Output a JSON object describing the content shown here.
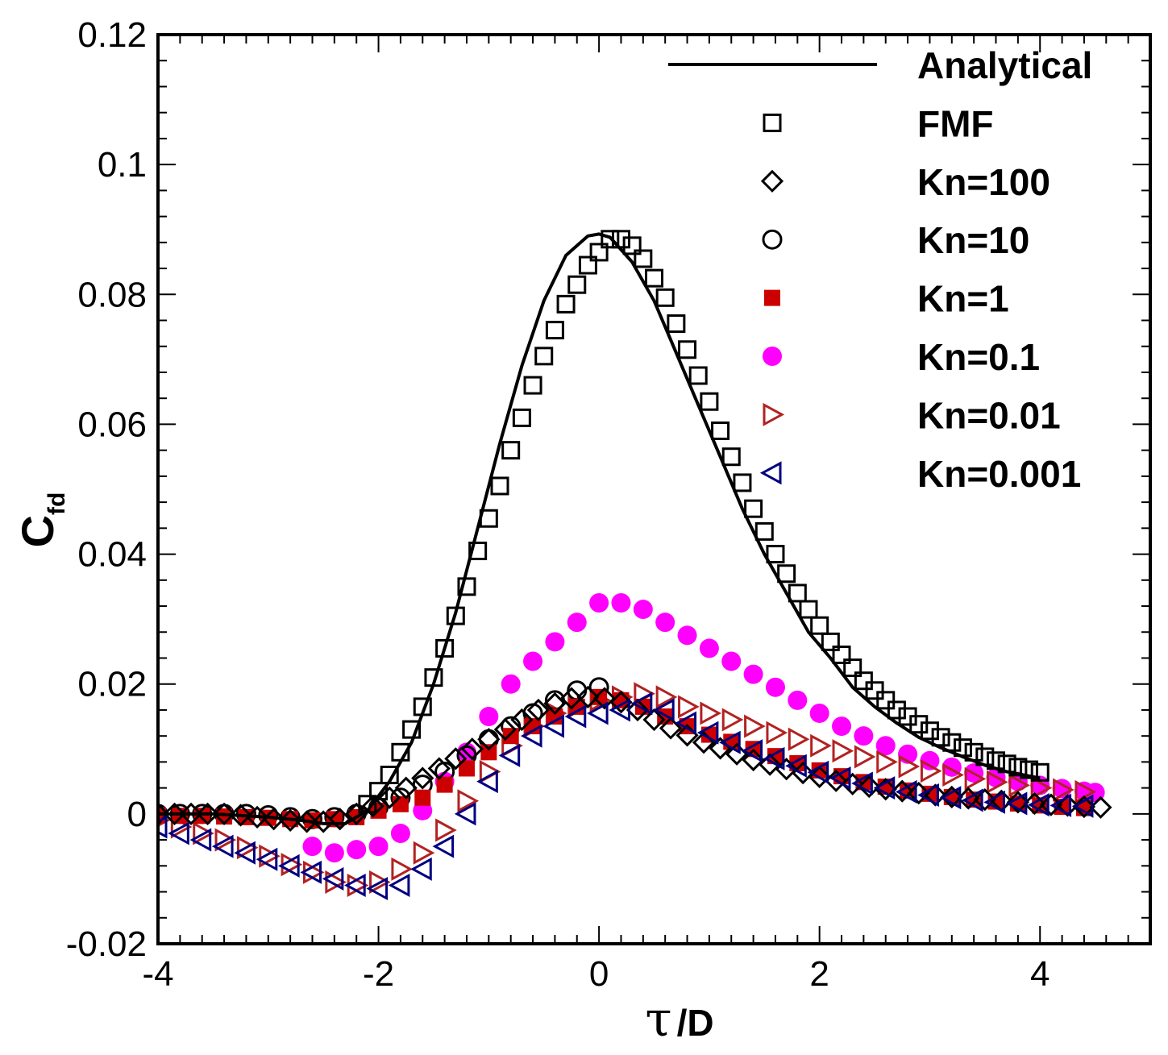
{
  "chart_data": {
    "type": "scatter",
    "title": "",
    "xlabel": {
      "main": "τ",
      "suffix": "/D"
    },
    "ylabel": {
      "main": "C",
      "subscript": "fd"
    },
    "xlim": [
      -4,
      5
    ],
    "ylim": [
      -0.02,
      0.12
    ],
    "xticks": [
      -4,
      -2,
      0,
      2,
      4
    ],
    "xtick_labels": [
      "-4",
      "-2",
      "0",
      "2",
      "4"
    ],
    "yticks": [
      -0.02,
      0,
      0.02,
      0.04,
      0.06,
      0.08,
      0.1,
      0.12
    ],
    "ytick_labels": [
      "-0.02",
      "0",
      "0.02",
      "0.04",
      "0.06",
      "0.08",
      "0.1",
      "0.12"
    ],
    "grid": false,
    "legend_position": "top-right",
    "series": [
      {
        "name": "Analytical",
        "marker": "line",
        "color": "#000000",
        "x": [
          -4.0,
          -3.5,
          -3.0,
          -2.7,
          -2.5,
          -2.3,
          -2.1,
          -1.9,
          -1.7,
          -1.5,
          -1.3,
          -1.1,
          -0.9,
          -0.7,
          -0.5,
          -0.3,
          -0.1,
          0.0,
          0.1,
          0.3,
          0.5,
          0.7,
          0.9,
          1.1,
          1.3,
          1.5,
          1.7,
          1.9,
          2.1,
          2.3,
          2.5,
          2.7,
          2.9,
          3.1,
          3.3,
          3.5,
          3.7,
          4.0
        ],
        "y": [
          0.0,
          0.0,
          -0.0005,
          -0.001,
          -0.0015,
          -0.0015,
          0.0005,
          0.005,
          0.011,
          0.02,
          0.031,
          0.044,
          0.057,
          0.069,
          0.079,
          0.086,
          0.089,
          0.0893,
          0.0888,
          0.085,
          0.079,
          0.071,
          0.063,
          0.055,
          0.047,
          0.04,
          0.034,
          0.028,
          0.024,
          0.0195,
          0.0165,
          0.014,
          0.0118,
          0.0102,
          0.0088,
          0.0075,
          0.0065,
          0.0055
        ]
      },
      {
        "name": "FMF",
        "marker": "open-square",
        "color": "#000000",
        "x": [
          -2.1,
          -2.0,
          -1.9,
          -1.8,
          -1.7,
          -1.6,
          -1.5,
          -1.4,
          -1.3,
          -1.2,
          -1.1,
          -1.0,
          -0.9,
          -0.8,
          -0.7,
          -0.6,
          -0.5,
          -0.4,
          -0.3,
          -0.2,
          -0.1,
          0.0,
          0.1,
          0.2,
          0.3,
          0.4,
          0.5,
          0.6,
          0.7,
          0.8,
          0.9,
          1.0,
          1.1,
          1.2,
          1.3,
          1.4,
          1.5,
          1.6,
          1.7,
          1.8,
          1.9,
          2.0,
          2.1,
          2.2,
          2.3,
          2.4,
          2.5,
          2.6,
          2.7,
          2.8,
          2.9,
          3.0,
          3.1,
          3.2,
          3.3,
          3.4,
          3.5,
          3.6,
          3.7,
          3.8,
          3.9,
          4.0
        ],
        "y": [
          0.0015,
          0.0035,
          0.006,
          0.0095,
          0.013,
          0.0165,
          0.021,
          0.0255,
          0.0305,
          0.035,
          0.0405,
          0.0455,
          0.0505,
          0.056,
          0.061,
          0.066,
          0.0705,
          0.0745,
          0.0785,
          0.0815,
          0.0845,
          0.0865,
          0.0885,
          0.0885,
          0.0875,
          0.0855,
          0.0825,
          0.0795,
          0.0755,
          0.0715,
          0.0675,
          0.0635,
          0.059,
          0.055,
          0.051,
          0.047,
          0.0435,
          0.04,
          0.037,
          0.034,
          0.0315,
          0.029,
          0.0265,
          0.0245,
          0.0225,
          0.0205,
          0.019,
          0.0175,
          0.016,
          0.015,
          0.0138,
          0.0128,
          0.0118,
          0.011,
          0.0102,
          0.0095,
          0.0088,
          0.0082,
          0.0077,
          0.0072,
          0.0068,
          0.0064
        ]
      },
      {
        "name": "Kn=100",
        "marker": "open-diamond",
        "color": "#000000",
        "x": [
          -4.0,
          -3.85,
          -3.7,
          -3.55,
          -3.4,
          -3.25,
          -3.1,
          -2.95,
          -2.8,
          -2.65,
          -2.5,
          -2.35,
          -2.2,
          -2.05,
          -1.9,
          -1.75,
          -1.6,
          -1.45,
          -1.3,
          -1.15,
          -1.0,
          -0.85,
          -0.7,
          -0.55,
          -0.4,
          -0.25,
          -0.1,
          0.05,
          0.2,
          0.35,
          0.5,
          0.65,
          0.8,
          0.95,
          1.1,
          1.25,
          1.4,
          1.55,
          1.7,
          1.85,
          2.0,
          2.15,
          2.3,
          2.45,
          2.6,
          2.75,
          2.9,
          3.05,
          3.2,
          3.35,
          3.5,
          3.65,
          3.8,
          3.95,
          4.1,
          4.25,
          4.4,
          4.55
        ],
        "y": [
          0.0,
          0.0,
          0.0,
          0.0,
          0.0,
          -0.0002,
          -0.0005,
          -0.0008,
          -0.001,
          -0.0012,
          -0.0012,
          -0.0008,
          0.0,
          0.0012,
          0.0025,
          0.004,
          0.0055,
          0.007,
          0.0085,
          0.01,
          0.0115,
          0.013,
          0.0145,
          0.016,
          0.017,
          0.0178,
          0.018,
          0.0178,
          0.0172,
          0.016,
          0.0145,
          0.0132,
          0.0121,
          0.011,
          0.0101,
          0.0092,
          0.0083,
          0.0076,
          0.0069,
          0.0063,
          0.0057,
          0.0051,
          0.0046,
          0.0042,
          0.0038,
          0.0035,
          0.0032,
          0.0029,
          0.0026,
          0.0024,
          0.0022,
          0.002,
          0.0018,
          0.0016,
          0.0014,
          0.0013,
          0.0011,
          0.001
        ]
      },
      {
        "name": "Kn=10",
        "marker": "open-circle",
        "color": "#000000",
        "x": [
          -4.0,
          -3.8,
          -3.6,
          -3.4,
          -3.2,
          -3.0,
          -2.8,
          -2.6,
          -2.4,
          -2.2,
          -2.0,
          -1.8,
          -1.6,
          -1.4,
          -1.2,
          -1.0,
          -0.8,
          -0.6,
          -0.4,
          -0.2,
          0.0
        ],
        "y": [
          0.0,
          0.0,
          0.0,
          0.0,
          0.0,
          -0.0002,
          -0.0005,
          -0.0008,
          -0.0005,
          0.0,
          0.001,
          0.0025,
          0.0045,
          0.0065,
          0.009,
          0.0115,
          0.0135,
          0.0155,
          0.0175,
          0.019,
          0.0195
        ]
      },
      {
        "name": "Kn=1",
        "marker": "filled-square",
        "color": "#cc0000",
        "x": [
          -4.0,
          -3.8,
          -3.6,
          -3.4,
          -3.2,
          -3.0,
          -2.8,
          -2.6,
          -2.4,
          -2.2,
          -2.0,
          -1.8,
          -1.6,
          -1.4,
          -1.2,
          -1.0,
          -0.8,
          -0.6,
          -0.4,
          -0.2,
          0.0,
          0.2,
          0.4,
          0.6,
          0.8,
          1.0,
          1.2,
          1.4,
          1.6,
          1.8,
          2.0,
          2.2,
          2.4,
          2.6,
          2.8,
          3.0,
          3.2,
          3.4,
          3.6,
          3.8,
          4.0,
          4.2,
          4.4
        ],
        "y": [
          -0.0002,
          -0.0003,
          -0.0003,
          -0.0004,
          -0.0005,
          -0.0006,
          -0.0008,
          -0.001,
          -0.0008,
          -0.0005,
          0.0005,
          0.0015,
          0.0025,
          0.0045,
          0.007,
          0.0095,
          0.012,
          0.0135,
          0.015,
          0.0165,
          0.018,
          0.0175,
          0.0165,
          0.015,
          0.0135,
          0.0122,
          0.0111,
          0.01,
          0.0089,
          0.0078,
          0.0067,
          0.0058,
          0.0049,
          0.0042,
          0.0036,
          0.0031,
          0.0026,
          0.0022,
          0.0019,
          0.0016,
          0.0013,
          0.0011,
          0.0009
        ]
      },
      {
        "name": "Kn=0.1",
        "marker": "filled-circle",
        "color": "#ff00ff",
        "x": [
          -2.6,
          -2.4,
          -2.2,
          -2.0,
          -1.8,
          -1.6,
          -1.4,
          -1.2,
          -1.0,
          -0.8,
          -0.6,
          -0.4,
          -0.2,
          0.0,
          0.2,
          0.4,
          0.6,
          0.8,
          1.0,
          1.2,
          1.4,
          1.6,
          1.8,
          2.0,
          2.2,
          2.4,
          2.6,
          2.8,
          3.0,
          3.2,
          3.4,
          3.6,
          3.8,
          4.0,
          4.2,
          4.4,
          4.5
        ],
        "y": [
          -0.005,
          -0.006,
          -0.0055,
          -0.005,
          -0.003,
          0.0005,
          0.005,
          0.0095,
          0.015,
          0.02,
          0.0235,
          0.0265,
          0.0295,
          0.0325,
          0.0325,
          0.0315,
          0.0295,
          0.0275,
          0.0255,
          0.0235,
          0.0215,
          0.0195,
          0.0175,
          0.0155,
          0.0135,
          0.012,
          0.0105,
          0.0092,
          0.0082,
          0.0072,
          0.0063,
          0.0056,
          0.005,
          0.0044,
          0.0039,
          0.0035,
          0.0033
        ]
      },
      {
        "name": "Kn=0.01",
        "marker": "open-triangle-right",
        "color": "#b22222",
        "x": [
          -4.0,
          -3.8,
          -3.6,
          -3.4,
          -3.2,
          -3.0,
          -2.8,
          -2.6,
          -2.4,
          -2.2,
          -2.0,
          -1.8,
          -1.6,
          -1.4,
          -1.2,
          -1.0,
          -0.8,
          -0.6,
          -0.4,
          -0.2,
          0.0,
          0.2,
          0.4,
          0.6,
          0.8,
          1.0,
          1.2,
          1.4,
          1.6,
          1.8,
          2.0,
          2.2,
          2.4,
          2.6,
          2.8,
          3.0,
          3.2,
          3.4,
          3.6,
          3.8,
          4.0,
          4.2,
          4.4
        ],
        "y": [
          -0.001,
          -0.002,
          -0.003,
          -0.004,
          -0.0052,
          -0.0065,
          -0.0078,
          -0.009,
          -0.0105,
          -0.011,
          -0.0105,
          -0.0085,
          -0.006,
          -0.0025,
          0.002,
          0.0065,
          0.0105,
          0.0135,
          0.0155,
          0.0165,
          0.0175,
          0.018,
          0.0185,
          0.018,
          0.0165,
          0.0155,
          0.0145,
          0.0135,
          0.0125,
          0.0115,
          0.0105,
          0.0097,
          0.0088,
          0.008,
          0.0073,
          0.0066,
          0.006,
          0.0054,
          0.0049,
          0.0044,
          0.004,
          0.0037,
          0.0034
        ]
      },
      {
        "name": "Kn=0.001",
        "marker": "open-triangle-left",
        "color": "#000080",
        "x": [
          -4.0,
          -3.8,
          -3.6,
          -3.4,
          -3.2,
          -3.0,
          -2.8,
          -2.6,
          -2.4,
          -2.2,
          -2.0,
          -1.8,
          -1.6,
          -1.4,
          -1.2,
          -1.0,
          -0.8,
          -0.6,
          -0.4,
          -0.2,
          0.0,
          0.2,
          0.4,
          0.6,
          0.8,
          1.0,
          1.2,
          1.4,
          1.6,
          1.8,
          2.0,
          2.2,
          2.4,
          2.6,
          2.8,
          3.0,
          3.2,
          3.4,
          3.6,
          3.8,
          4.0,
          4.2,
          4.4
        ],
        "y": [
          -0.002,
          -0.003,
          -0.004,
          -0.005,
          -0.006,
          -0.007,
          -0.008,
          -0.009,
          -0.01,
          -0.011,
          -0.0115,
          -0.011,
          -0.0085,
          -0.005,
          0.0,
          0.005,
          0.009,
          0.012,
          0.0135,
          0.015,
          0.0155,
          0.016,
          0.017,
          0.016,
          0.014,
          0.0125,
          0.011,
          0.0097,
          0.0085,
          0.0074,
          0.0064,
          0.0055,
          0.0047,
          0.004,
          0.0034,
          0.0029,
          0.0025,
          0.0021,
          0.0018,
          0.0016,
          0.0014,
          0.0013,
          0.0012
        ]
      }
    ]
  }
}
